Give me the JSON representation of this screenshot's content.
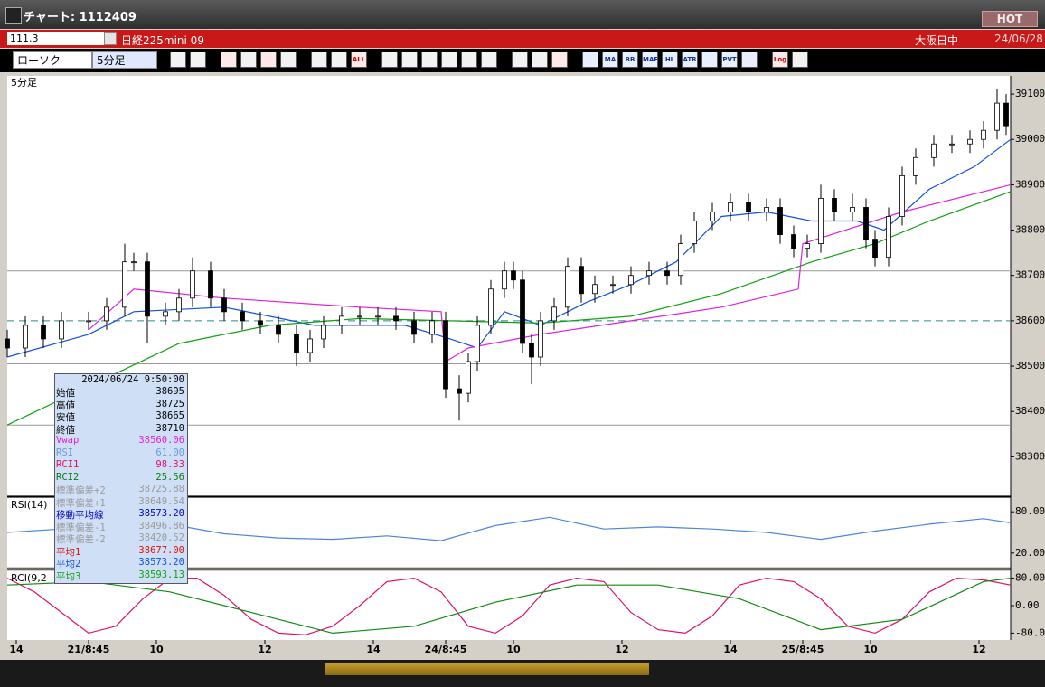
{
  "window": {
    "title": "チャート: 1112409",
    "hot": "HOT"
  },
  "header": {
    "code": "111.3",
    "instrument": "日経225mini 09",
    "session": "大阪日中",
    "date": "24/06/28"
  },
  "toolbar": {
    "chart_type": "ローソク",
    "interval": "5分足",
    "buttons": [
      "ALL",
      "MA",
      "BB",
      "MAE",
      "HL",
      "ATR",
      "PVT",
      "Log"
    ]
  },
  "info_panel": {
    "datetime": "2024/06/24 9:50:00",
    "rows": [
      {
        "label": "始値",
        "value": "38695",
        "color": "#000000"
      },
      {
        "label": "高値",
        "value": "38725",
        "color": "#000000"
      },
      {
        "label": "安値",
        "value": "38665",
        "color": "#000000"
      },
      {
        "label": "終値",
        "value": "38710",
        "color": "#000000"
      },
      {
        "label": "Vwap",
        "value": "38560.06",
        "color": "#e020e0"
      },
      {
        "label": "RSI",
        "value": "61.00",
        "color": "#6a9ae0"
      },
      {
        "label": "RCI1",
        "value": "98.33",
        "color": "#e0106a"
      },
      {
        "label": "RCI2",
        "value": "25.56",
        "color": "#107a10"
      },
      {
        "label": "標準偏差+2",
        "value": "38725.88",
        "color": "#9a9a9a"
      },
      {
        "label": "標準偏差+1",
        "value": "38649.54",
        "color": "#9a9a9a"
      },
      {
        "label": "移動平均線",
        "value": "38573.20",
        "color": "#0000c0"
      },
      {
        "label": "標準偏差-1",
        "value": "38496.86",
        "color": "#9a9a9a"
      },
      {
        "label": "標準偏差-2",
        "value": "38420.52",
        "color": "#9a9a9a"
      },
      {
        "label": "平均1",
        "value": "38677.00",
        "color": "#e01010"
      },
      {
        "label": "平均2",
        "value": "38573.20",
        "color": "#1050e0"
      },
      {
        "label": "平均3",
        "value": "38593.13",
        "color": "#10a010"
      }
    ]
  },
  "chart_data": [
    {
      "type": "candlestick",
      "title": "5分足",
      "xlim": [
        -18,
        204
      ],
      "ylim": [
        38215,
        39140
      ],
      "yticks": [
        38300,
        38400,
        38500,
        38600,
        38700,
        38800,
        38900,
        39000,
        39100
      ],
      "levels": [
        {
          "value": 38600,
          "color": "#2a8a8a",
          "dashed": true
        },
        {
          "value": 38710,
          "color": "#999999",
          "dashed": false
        },
        {
          "value": 38505,
          "color": "#999999",
          "dashed": false
        },
        {
          "value": 38370,
          "color": "#999999",
          "dashed": false
        }
      ],
      "x": [
        -18,
        -14,
        -10,
        -6,
        0,
        4,
        8,
        10,
        13,
        17,
        20,
        23,
        27,
        30,
        34,
        38,
        42,
        46,
        49,
        52,
        56,
        60,
        64,
        68,
        72,
        76,
        79,
        82,
        84,
        86,
        89,
        92,
        94,
        96,
        98,
        100,
        103,
        106,
        109,
        112,
        116,
        120,
        124,
        128,
        131,
        134,
        138,
        142,
        146,
        150,
        153,
        156,
        159,
        162,
        165,
        169,
        172,
        174,
        177,
        180,
        183,
        187,
        191,
        195,
        198,
        201,
        203
      ],
      "open": [
        38560,
        38540,
        38590,
        38560,
        38600,
        38600,
        38630,
        38730,
        38730,
        38610,
        38620,
        38650,
        38710,
        38650,
        38620,
        38600,
        38590,
        38570,
        38530,
        38560,
        38590,
        38610,
        38610,
        38610,
        38600,
        38570,
        38600,
        38450,
        38440,
        38510,
        38590,
        38670,
        38710,
        38690,
        38550,
        38520,
        38600,
        38630,
        38720,
        38660,
        38680,
        38680,
        38700,
        38710,
        38700,
        38770,
        38820,
        38840,
        38860,
        38840,
        38850,
        38790,
        38760,
        38770,
        38870,
        38840,
        38850,
        38780,
        38740,
        38830,
        38920,
        38960,
        38990,
        38990,
        39000,
        39020,
        39080
      ],
      "high": [
        38580,
        38610,
        38610,
        38620,
        38620,
        38650,
        38770,
        38750,
        38750,
        38640,
        38670,
        38740,
        38730,
        38670,
        38640,
        38620,
        38610,
        38590,
        38580,
        38610,
        38630,
        38630,
        38630,
        38630,
        38620,
        38620,
        38620,
        38480,
        38530,
        38610,
        38690,
        38730,
        38730,
        38710,
        38570,
        38620,
        38650,
        38740,
        38740,
        38700,
        38700,
        38720,
        38730,
        38730,
        38790,
        38840,
        38860,
        38880,
        38880,
        38870,
        38870,
        38810,
        38790,
        38900,
        38890,
        38880,
        38870,
        38800,
        38850,
        38940,
        38980,
        39010,
        39010,
        39020,
        39040,
        39110,
        39100
      ],
      "low": [
        38520,
        38520,
        38540,
        38540,
        38580,
        38580,
        38610,
        38710,
        38550,
        38590,
        38600,
        38630,
        38630,
        38600,
        38580,
        38570,
        38550,
        38500,
        38510,
        38540,
        38570,
        38590,
        38590,
        38580,
        38550,
        38550,
        38430,
        38380,
        38420,
        38490,
        38570,
        38650,
        38670,
        38530,
        38460,
        38500,
        38580,
        38610,
        38640,
        38640,
        38660,
        38660,
        38680,
        38680,
        38680,
        38750,
        38800,
        38820,
        38820,
        38820,
        38770,
        38740,
        38740,
        38750,
        38820,
        38820,
        38760,
        38720,
        38720,
        38810,
        38900,
        38940,
        38970,
        38970,
        38980,
        39000,
        39010
      ],
      "close": [
        38540,
        38590,
        38560,
        38600,
        38600,
        38630,
        38730,
        38730,
        38610,
        38620,
        38650,
        38710,
        38650,
        38620,
        38600,
        38590,
        38570,
        38530,
        38560,
        38590,
        38610,
        38610,
        38610,
        38600,
        38570,
        38600,
        38450,
        38440,
        38510,
        38590,
        38670,
        38710,
        38690,
        38550,
        38520,
        38600,
        38630,
        38720,
        38660,
        38680,
        38680,
        38700,
        38710,
        38700,
        38770,
        38820,
        38840,
        38860,
        38840,
        38850,
        38790,
        38760,
        38770,
        38870,
        38840,
        38850,
        38780,
        38740,
        38830,
        38920,
        38960,
        38990,
        38990,
        39000,
        39020,
        39080,
        39030
      ],
      "series": [
        {
          "color": "#1050e0",
          "x": [
            -18,
            0,
            10,
            30,
            50,
            70,
            80,
            86,
            92,
            100,
            110,
            120,
            130,
            140,
            150,
            160,
            170,
            176,
            186,
            196,
            204
          ],
          "values": [
            38520,
            38570,
            38620,
            38630,
            38590,
            38590,
            38560,
            38540,
            38620,
            38590,
            38640,
            38680,
            38730,
            38830,
            38840,
            38820,
            38820,
            38800,
            38890,
            38940,
            39000
          ]
        },
        {
          "color": "#10a010",
          "x": [
            -18,
            20,
            40,
            60,
            80,
            100,
            120,
            140,
            160,
            174,
            186,
            204
          ],
          "values": [
            38370,
            38550,
            38590,
            38605,
            38600,
            38595,
            38610,
            38660,
            38730,
            38770,
            38820,
            38885
          ]
        },
        {
          "color": "#e020e0",
          "x": [
            0,
            10,
            30,
            60,
            78,
            79,
            84,
            100,
            120,
            140,
            157,
            158,
            180,
            204
          ],
          "values": [
            38580,
            38670,
            38650,
            38630,
            38620,
            38510,
            38540,
            38570,
            38600,
            38630,
            38670,
            38770,
            38840,
            38900
          ]
        }
      ]
    },
    {
      "type": "line",
      "title": "RSI(14)",
      "xlim": [
        -18,
        204
      ],
      "ylim": [
        0,
        100
      ],
      "yticks": [
        {
          "value": 80,
          "label": "80.00"
        },
        {
          "value": 20,
          "label": "20.00"
        }
      ],
      "series": [
        {
          "color": "#4a86d8",
          "x": [
            -18,
            -6,
            6,
            18,
            30,
            42,
            54,
            66,
            78,
            90,
            102,
            114,
            126,
            138,
            150,
            162,
            174,
            186,
            198,
            204
          ],
          "values": [
            50,
            55,
            58,
            62,
            48,
            42,
            40,
            45,
            38,
            60,
            72,
            55,
            58,
            55,
            50,
            40,
            52,
            62,
            70,
            64
          ]
        }
      ]
    },
    {
      "type": "line",
      "title": "RCI(9,2",
      "xlim": [
        -18,
        204
      ],
      "ylim": [
        -100,
        100
      ],
      "yticks": [
        {
          "value": 80,
          "label": "80.00"
        },
        {
          "value": 0,
          "label": "0.00"
        },
        {
          "value": -80,
          "label": "-80.00"
        }
      ],
      "xticks": [
        {
          "value": -16,
          "label": "14"
        },
        {
          "value": 0,
          "label": "21/8:45"
        },
        {
          "value": 15,
          "label": "10"
        },
        {
          "value": 39,
          "label": "12"
        },
        {
          "value": 63,
          "label": "14"
        },
        {
          "value": 79,
          "label": "24/8:45"
        },
        {
          "value": 94,
          "label": "10"
        },
        {
          "value": 118,
          "label": "12"
        },
        {
          "value": 142,
          "label": "14"
        },
        {
          "value": 158,
          "label": "25/8:45"
        },
        {
          "value": 173,
          "label": "10"
        },
        {
          "value": 197,
          "label": "12"
        }
      ],
      "series": [
        {
          "color": "#e0106a",
          "x": [
            -18,
            -12,
            -6,
            0,
            6,
            12,
            18,
            24,
            30,
            36,
            42,
            48,
            54,
            60,
            66,
            72,
            78,
            84,
            90,
            96,
            102,
            108,
            114,
            120,
            126,
            132,
            138,
            144,
            150,
            156,
            162,
            168,
            174,
            180,
            186,
            192,
            198,
            204
          ],
          "values": [
            80,
            40,
            -20,
            -80,
            -60,
            20,
            80,
            80,
            30,
            -40,
            -80,
            -85,
            -60,
            0,
            70,
            80,
            40,
            -60,
            -80,
            -30,
            60,
            80,
            70,
            -20,
            -70,
            -80,
            -30,
            60,
            80,
            70,
            20,
            -60,
            -80,
            -40,
            40,
            80,
            75,
            60
          ]
        },
        {
          "color": "#108a10",
          "x": [
            -18,
            0,
            18,
            36,
            54,
            72,
            90,
            108,
            126,
            144,
            162,
            180,
            198,
            204
          ],
          "values": [
            60,
            70,
            40,
            -20,
            -80,
            -60,
            10,
            60,
            60,
            20,
            -70,
            -40,
            70,
            80
          ]
        }
      ]
    }
  ]
}
